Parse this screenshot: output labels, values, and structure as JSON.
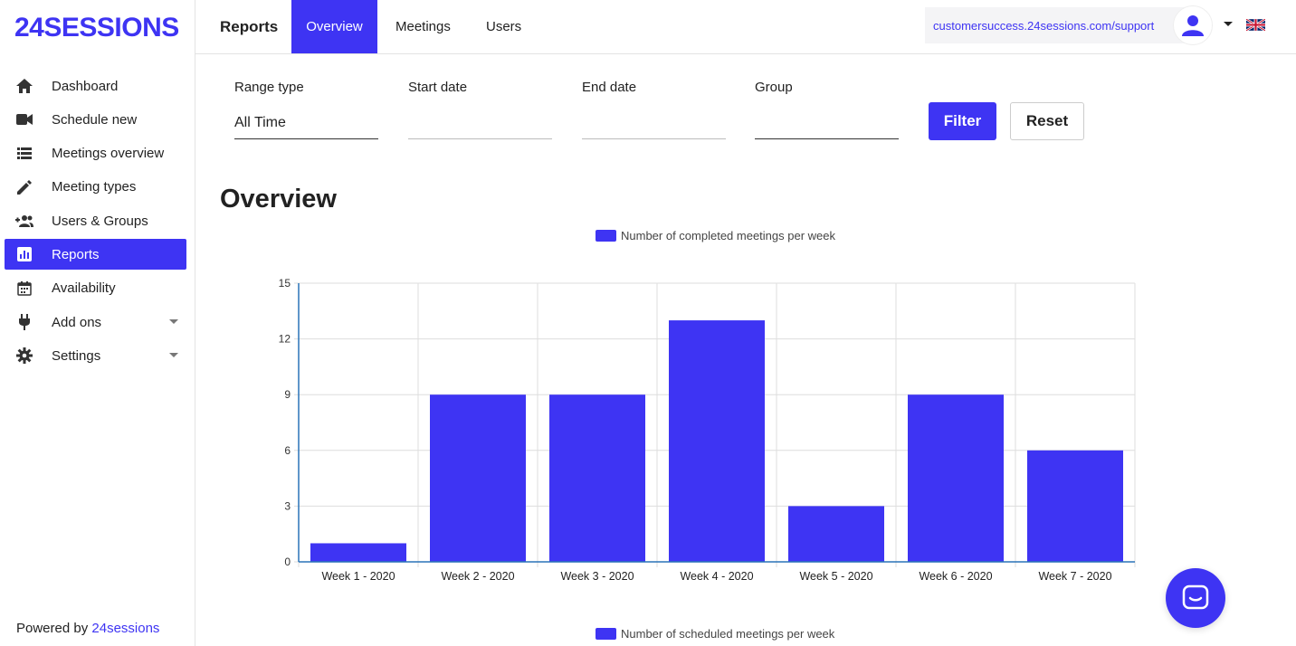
{
  "app": {
    "logo": "24SESSIONS"
  },
  "sidebar": {
    "items": [
      {
        "label": "Dashboard",
        "icon": "home-icon"
      },
      {
        "label": "Schedule new",
        "icon": "video-camera-icon"
      },
      {
        "label": "Meetings overview",
        "icon": "list-icon"
      },
      {
        "label": "Meeting types",
        "icon": "pencil-icon"
      },
      {
        "label": "Users & Groups",
        "icon": "add-user-group-icon"
      },
      {
        "label": "Reports",
        "icon": "bar-chart-icon",
        "active": true
      },
      {
        "label": "Availability",
        "icon": "calendar-icon"
      },
      {
        "label": "Add ons",
        "icon": "plug-icon",
        "expandable": true
      },
      {
        "label": "Settings",
        "icon": "gear-icon",
        "expandable": true
      }
    ],
    "powered_prefix": "Powered by",
    "powered_link": "24sessions"
  },
  "header": {
    "title": "Reports",
    "tabs": [
      {
        "label": "Overview",
        "active": true
      },
      {
        "label": "Meetings"
      },
      {
        "label": "Users"
      }
    ],
    "support_link": "customersuccess.24sessions.com/support",
    "language_flag": "uk-flag-icon"
  },
  "filters": {
    "range_type_label": "Range type",
    "range_type_value": "All Time",
    "start_date_label": "Start date",
    "start_date_value": "",
    "end_date_label": "End date",
    "end_date_value": "",
    "group_label": "Group",
    "group_value": "",
    "filter_button": "Filter",
    "reset_button": "Reset"
  },
  "main": {
    "title": "Overview"
  },
  "colors": {
    "accent": "#3e34f3",
    "grid": "#dddddd",
    "axis": "#2a74b8"
  },
  "chart_data": {
    "type": "bar",
    "categories": [
      "Week 1 - 2020",
      "Week 2 - 2020",
      "Week 3 - 2020",
      "Week 4 - 2020",
      "Week 5 - 2020",
      "Week 6 - 2020",
      "Week 7 - 2020"
    ],
    "series": [
      {
        "name": "Number of completed meetings per week",
        "values": [
          1,
          9,
          9,
          13,
          3,
          9,
          6
        ]
      }
    ],
    "yticks": [
      0,
      3,
      6,
      9,
      12,
      15
    ],
    "ylim": [
      0,
      15
    ],
    "grid": true,
    "legend": "top-center"
  },
  "second_chart_legend": "Number of scheduled meetings per week"
}
